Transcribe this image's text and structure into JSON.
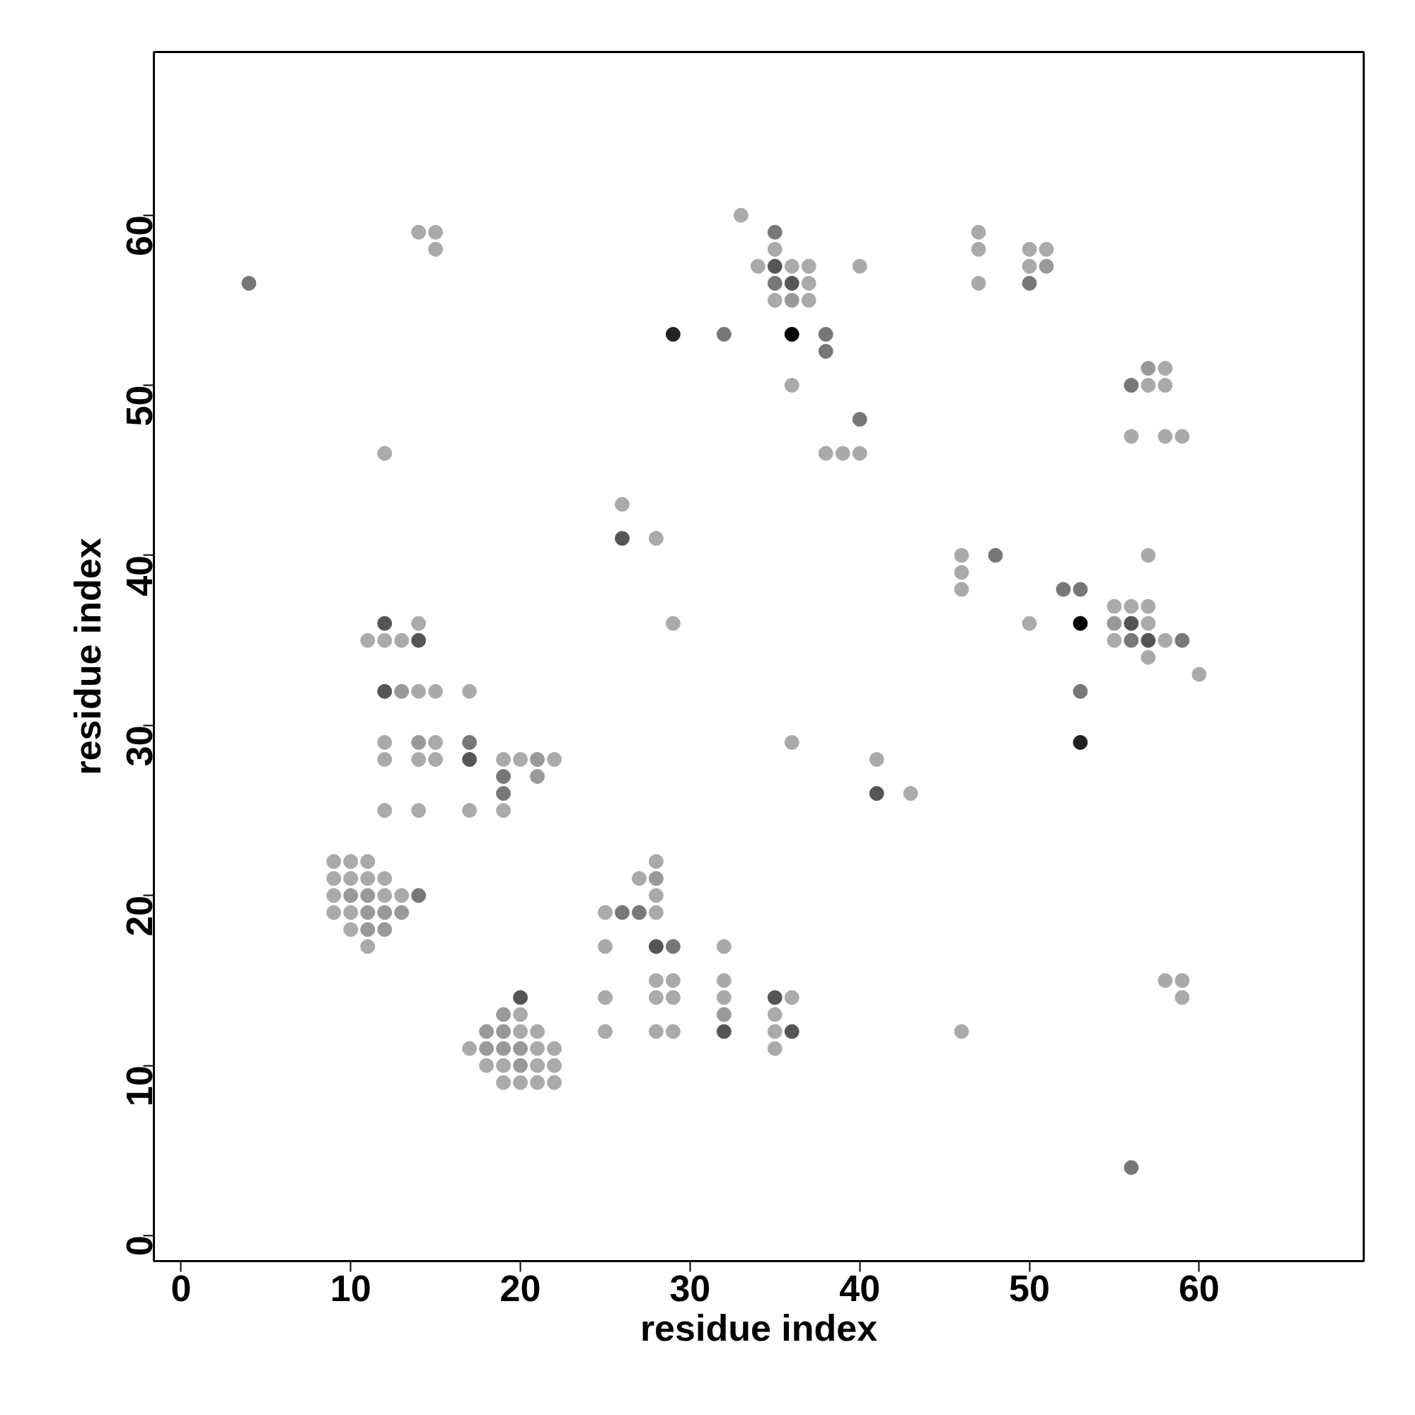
{
  "chart_data": {
    "type": "scatter",
    "xlabel": "residue index",
    "ylabel": "residue index",
    "xlim": [
      -1.6,
      69.7
    ],
    "ylim": [
      -1.5,
      69.6
    ],
    "xticks": [
      0,
      10,
      20,
      30,
      40,
      50,
      60
    ],
    "yticks": [
      0,
      10,
      20,
      30,
      40,
      50,
      60
    ],
    "marker": "circle",
    "x": [
      4,
      14,
      15,
      15,
      12,
      12,
      14,
      11,
      12,
      13,
      14,
      12,
      13,
      14,
      15,
      17,
      12,
      14,
      15,
      17,
      12,
      14,
      15,
      17,
      19,
      20,
      21,
      22,
      19,
      21,
      19,
      12,
      14,
      17,
      19,
      9,
      10,
      11,
      9,
      10,
      11,
      12,
      9,
      10,
      11,
      12,
      13,
      14,
      9,
      10,
      11,
      12,
      13,
      10,
      11,
      12,
      11,
      20,
      19,
      20,
      18,
      19,
      20,
      21,
      17,
      18,
      19,
      20,
      21,
      22,
      18,
      19,
      20,
      21,
      22,
      19,
      20,
      21,
      22,
      33,
      35,
      35,
      34,
      35,
      36,
      37,
      40,
      35,
      36,
      37,
      35,
      36,
      37,
      29,
      32,
      36,
      38,
      38,
      36,
      40,
      38,
      39,
      40,
      26,
      26,
      28,
      29,
      36,
      41,
      41,
      43,
      27,
      28,
      28,
      28,
      25,
      26,
      27,
      28,
      25,
      28,
      29,
      32,
      28,
      29,
      32,
      25,
      28,
      29,
      32,
      35,
      36,
      32,
      35,
      25,
      28,
      29,
      32,
      35,
      36,
      35,
      47,
      47,
      47,
      50,
      51,
      50,
      51,
      50,
      57,
      58,
      56,
      57,
      58,
      56,
      58,
      59,
      46,
      48,
      46,
      46,
      52,
      53,
      55,
      56,
      57,
      50,
      53,
      55,
      56,
      57,
      55,
      56,
      57,
      58,
      59,
      57,
      60,
      53,
      53,
      46,
      58,
      59,
      59,
      56,
      57
    ],
    "values": [
      56,
      59,
      59,
      58,
      46,
      36,
      36,
      35,
      35,
      35,
      35,
      32,
      32,
      32,
      32,
      32,
      29,
      29,
      29,
      29,
      28,
      28,
      28,
      28,
      28,
      28,
      28,
      28,
      27,
      27,
      26,
      25,
      25,
      25,
      25,
      22,
      22,
      22,
      21,
      21,
      21,
      21,
      20,
      20,
      20,
      20,
      20,
      20,
      19,
      19,
      19,
      19,
      19,
      18,
      18,
      18,
      17,
      14,
      13,
      13,
      12,
      12,
      12,
      12,
      11,
      11,
      11,
      11,
      11,
      11,
      10,
      10,
      10,
      10,
      10,
      9,
      9,
      9,
      9,
      60,
      59,
      58,
      57,
      57,
      57,
      57,
      57,
      56,
      56,
      56,
      55,
      55,
      55,
      53,
      53,
      53,
      53,
      52,
      50,
      48,
      46,
      46,
      46,
      43,
      41,
      41,
      36,
      29,
      28,
      26,
      26,
      21,
      22,
      21,
      20,
      19,
      19,
      19,
      19,
      17,
      17,
      17,
      17,
      15,
      15,
      15,
      14,
      14,
      14,
      14,
      14,
      14,
      13,
      13,
      12,
      12,
      12,
      12,
      12,
      12,
      11,
      59,
      58,
      56,
      58,
      58,
      57,
      57,
      56,
      51,
      51,
      50,
      50,
      50,
      47,
      47,
      47,
      40,
      40,
      39,
      38,
      38,
      38,
      37,
      37,
      37,
      36,
      36,
      36,
      36,
      36,
      35,
      35,
      35,
      35,
      35,
      34,
      33,
      32,
      29,
      12,
      15,
      15,
      14,
      4,
      40
    ],
    "colors": [
      "#777777",
      "#aaaaaa",
      "#aaaaaa",
      "#aaaaaa",
      "#aaaaaa",
      "#555555",
      "#aaaaaa",
      "#aaaaaa",
      "#aaaaaa",
      "#aaaaaa",
      "#555555",
      "#555555",
      "#999999",
      "#aaaaaa",
      "#aaaaaa",
      "#aaaaaa",
      "#aaaaaa",
      "#999999",
      "#aaaaaa",
      "#777777",
      "#aaaaaa",
      "#aaaaaa",
      "#aaaaaa",
      "#555555",
      "#aaaaaa",
      "#aaaaaa",
      "#999999",
      "#aaaaaa",
      "#777777",
      "#999999",
      "#777777",
      "#aaaaaa",
      "#aaaaaa",
      "#aaaaaa",
      "#aaaaaa",
      "#aaaaaa",
      "#aaaaaa",
      "#aaaaaa",
      "#aaaaaa",
      "#aaaaaa",
      "#aaaaaa",
      "#aaaaaa",
      "#aaaaaa",
      "#999999",
      "#999999",
      "#aaaaaa",
      "#aaaaaa",
      "#777777",
      "#aaaaaa",
      "#aaaaaa",
      "#999999",
      "#999999",
      "#999999",
      "#aaaaaa",
      "#999999",
      "#999999",
      "#aaaaaa",
      "#555555",
      "#999999",
      "#aaaaaa",
      "#999999",
      "#999999",
      "#aaaaaa",
      "#aaaaaa",
      "#aaaaaa",
      "#999999",
      "#999999",
      "#999999",
      "#aaaaaa",
      "#aaaaaa",
      "#aaaaaa",
      "#aaaaaa",
      "#999999",
      "#aaaaaa",
      "#aaaaaa",
      "#aaaaaa",
      "#aaaaaa",
      "#aaaaaa",
      "#aaaaaa",
      "#aaaaaa",
      "#777777",
      "#aaaaaa",
      "#aaaaaa",
      "#555555",
      "#aaaaaa",
      "#aaaaaa",
      "#aaaaaa",
      "#777777",
      "#555555",
      "#aaaaaa",
      "#aaaaaa",
      "#999999",
      "#aaaaaa",
      "#222222",
      "#777777",
      "#000000",
      "#777777",
      "#777777",
      "#aaaaaa",
      "#777777",
      "#aaaaaa",
      "#aaaaaa",
      "#aaaaaa",
      "#aaaaaa",
      "#555555",
      "#aaaaaa",
      "#aaaaaa",
      "#aaaaaa",
      "#aaaaaa",
      "#555555",
      "#aaaaaa",
      "#aaaaaa",
      "#aaaaaa",
      "#999999",
      "#aaaaaa",
      "#aaaaaa",
      "#777777",
      "#777777",
      "#aaaaaa",
      "#aaaaaa",
      "#555555",
      "#777777",
      "#aaaaaa",
      "#aaaaaa",
      "#aaaaaa",
      "#aaaaaa",
      "#aaaaaa",
      "#aaaaaa",
      "#aaaaaa",
      "#aaaaaa",
      "#555555",
      "#aaaaaa",
      "#999999",
      "#aaaaaa",
      "#aaaaaa",
      "#aaaaaa",
      "#aaaaaa",
      "#555555",
      "#aaaaaa",
      "#555555",
      "#aaaaaa",
      "#aaaaaa",
      "#aaaaaa",
      "#aaaaaa",
      "#aaaaaa",
      "#aaaaaa",
      "#aaaaaa",
      "#999999",
      "#777777",
      "#999999",
      "#aaaaaa",
      "#777777",
      "#aaaaaa",
      "#aaaaaa",
      "#aaaaaa",
      "#aaaaaa",
      "#aaaaaa",
      "#aaaaaa",
      "#777777",
      "#aaaaaa",
      "#aaaaaa",
      "#777777",
      "#777777",
      "#aaaaaa",
      "#aaaaaa",
      "#aaaaaa",
      "#aaaaaa",
      "#000000",
      "#999999",
      "#555555",
      "#aaaaaa",
      "#aaaaaa",
      "#777777",
      "#555555",
      "#aaaaaa",
      "#777777",
      "#aaaaaa",
      "#aaaaaa",
      "#777777",
      "#222222",
      "#aaaaaa",
      "#aaaaaa",
      "#aaaaaa",
      "#aaaaaa",
      "#777777",
      "#aaaaaa"
    ]
  }
}
